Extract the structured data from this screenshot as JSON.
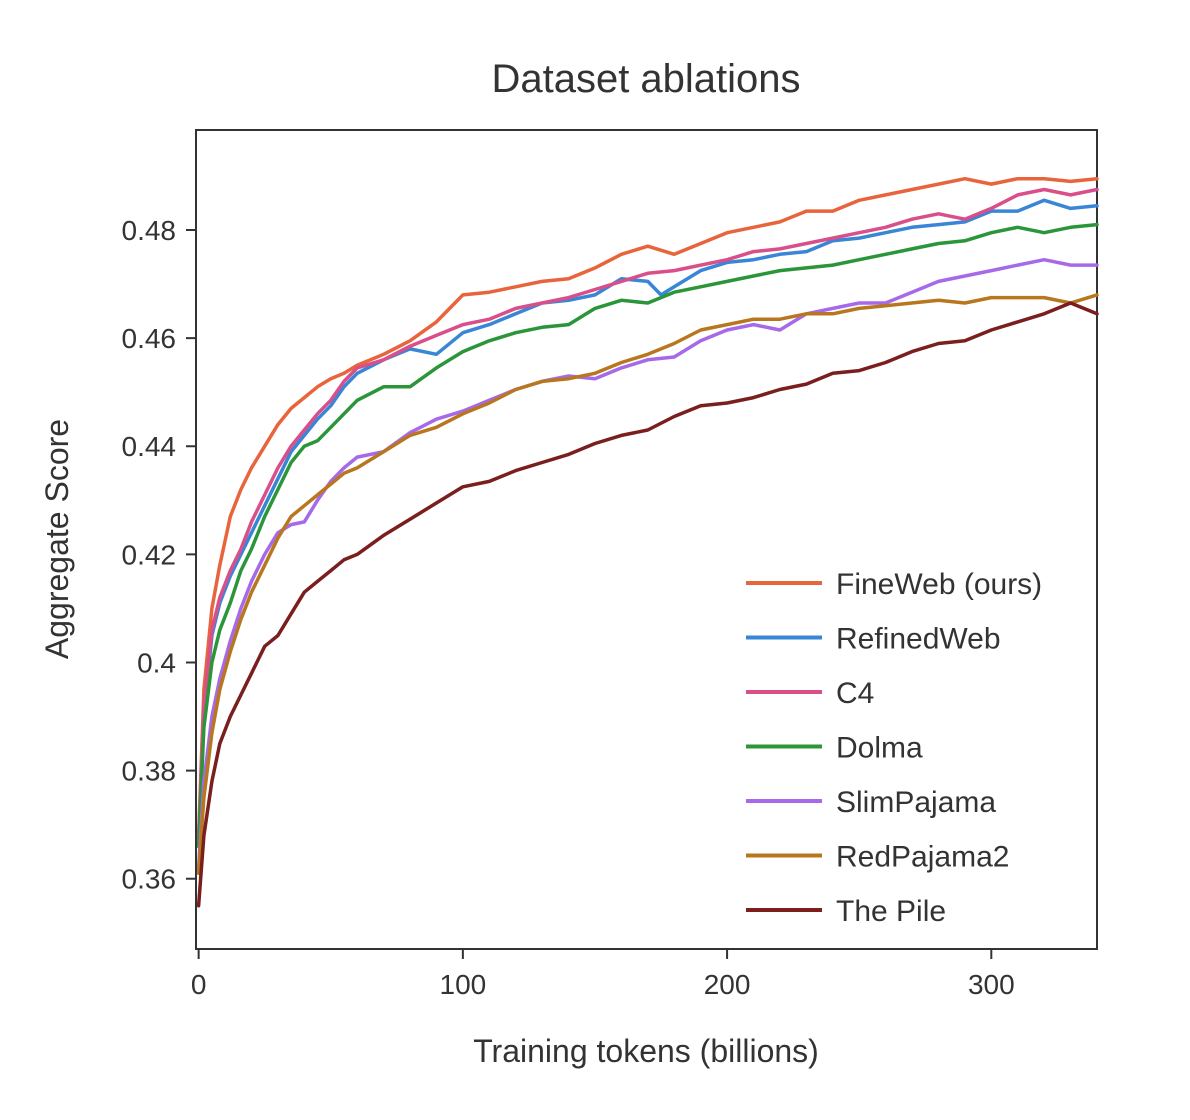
{
  "chart_data": {
    "type": "line",
    "title": "Dataset ablations",
    "xlabel": "Training tokens (billions)",
    "ylabel": "Aggregate Score",
    "xlim": [
      -1,
      340
    ],
    "ylim": [
      0.347,
      0.4985
    ],
    "x_ticks": [
      0,
      100,
      200,
      300
    ],
    "x_tick_labels": [
      "0",
      "100",
      "200",
      "300"
    ],
    "y_ticks": [
      0.36,
      0.38,
      0.4,
      0.42,
      0.44,
      0.46,
      0.48
    ],
    "y_tick_labels": [
      "0.36",
      "0.38",
      "0.4",
      "0.42",
      "0.44",
      "0.46",
      "0.48"
    ],
    "legend_position": "bottom-right",
    "series": [
      {
        "name": "FineWeb (ours)",
        "color": "#e8643c",
        "x": [
          0,
          2,
          5,
          8,
          12,
          16,
          20,
          25,
          30,
          35,
          40,
          45,
          50,
          55,
          60,
          70,
          80,
          90,
          100,
          110,
          120,
          130,
          140,
          150,
          160,
          170,
          180,
          190,
          200,
          210,
          220,
          230,
          240,
          250,
          260,
          270,
          280,
          290,
          300,
          310,
          320,
          330,
          340
        ],
        "y": [
          0.368,
          0.395,
          0.41,
          0.418,
          0.427,
          0.432,
          0.436,
          0.44,
          0.444,
          0.447,
          0.449,
          0.451,
          0.4525,
          0.4535,
          0.455,
          0.457,
          0.4595,
          0.463,
          0.468,
          0.4685,
          0.4695,
          0.4705,
          0.471,
          0.473,
          0.4755,
          0.477,
          0.4755,
          0.4775,
          0.4795,
          0.4805,
          0.4815,
          0.4835,
          0.4835,
          0.4855,
          0.4865,
          0.4875,
          0.4885,
          0.4895,
          0.4885,
          0.4895,
          0.4895,
          0.489,
          0.4895
        ]
      },
      {
        "name": "RefinedWeb",
        "color": "#3a86d6",
        "x": [
          0,
          2,
          5,
          8,
          12,
          16,
          20,
          25,
          30,
          35,
          40,
          45,
          50,
          55,
          60,
          70,
          80,
          90,
          100,
          110,
          120,
          130,
          140,
          150,
          160,
          170,
          175,
          180,
          190,
          200,
          210,
          220,
          230,
          240,
          250,
          260,
          270,
          280,
          290,
          300,
          310,
          320,
          330,
          340
        ],
        "y": [
          0.366,
          0.39,
          0.405,
          0.411,
          0.416,
          0.42,
          0.424,
          0.429,
          0.434,
          0.439,
          0.442,
          0.445,
          0.4475,
          0.451,
          0.4535,
          0.456,
          0.458,
          0.457,
          0.461,
          0.4625,
          0.4645,
          0.4665,
          0.467,
          0.468,
          0.471,
          0.4705,
          0.468,
          0.4695,
          0.4725,
          0.474,
          0.4745,
          0.4755,
          0.476,
          0.478,
          0.4785,
          0.4795,
          0.4805,
          0.481,
          0.4815,
          0.4835,
          0.4835,
          0.4855,
          0.484,
          0.4845
        ]
      },
      {
        "name": "C4",
        "color": "#d94f8a",
        "x": [
          0,
          2,
          5,
          8,
          12,
          16,
          20,
          25,
          30,
          35,
          40,
          45,
          50,
          55,
          60,
          70,
          80,
          90,
          100,
          110,
          120,
          130,
          140,
          150,
          160,
          170,
          180,
          190,
          200,
          210,
          220,
          230,
          240,
          250,
          260,
          270,
          280,
          290,
          300,
          310,
          320,
          330,
          340
        ],
        "y": [
          0.367,
          0.392,
          0.406,
          0.412,
          0.417,
          0.421,
          0.426,
          0.431,
          0.436,
          0.44,
          0.443,
          0.446,
          0.4485,
          0.452,
          0.4545,
          0.456,
          0.4585,
          0.4605,
          0.4625,
          0.4635,
          0.4655,
          0.4665,
          0.4675,
          0.469,
          0.4705,
          0.472,
          0.4725,
          0.4735,
          0.4745,
          0.476,
          0.4765,
          0.4775,
          0.4785,
          0.4795,
          0.4805,
          0.482,
          0.483,
          0.482,
          0.484,
          0.4865,
          0.4875,
          0.4865,
          0.4875
        ]
      },
      {
        "name": "Dolma",
        "color": "#2a9639",
        "x": [
          0,
          2,
          5,
          8,
          12,
          16,
          20,
          25,
          30,
          35,
          40,
          45,
          50,
          55,
          60,
          70,
          80,
          90,
          100,
          110,
          120,
          130,
          140,
          150,
          160,
          170,
          180,
          190,
          200,
          210,
          220,
          230,
          240,
          250,
          260,
          270,
          280,
          290,
          300,
          310,
          320,
          330,
          340
        ],
        "y": [
          0.366,
          0.388,
          0.4,
          0.406,
          0.411,
          0.417,
          0.421,
          0.427,
          0.432,
          0.437,
          0.44,
          0.441,
          0.4435,
          0.446,
          0.4485,
          0.451,
          0.451,
          0.4545,
          0.4575,
          0.4595,
          0.461,
          0.462,
          0.4625,
          0.4655,
          0.467,
          0.4665,
          0.4685,
          0.4695,
          0.4705,
          0.4715,
          0.4725,
          0.473,
          0.4735,
          0.4745,
          0.4755,
          0.4765,
          0.4775,
          0.478,
          0.4795,
          0.4805,
          0.4795,
          0.4805,
          0.481
        ]
      },
      {
        "name": "SlimPajama",
        "color": "#a66ae8",
        "x": [
          0,
          2,
          5,
          8,
          12,
          16,
          20,
          25,
          30,
          35,
          40,
          45,
          50,
          55,
          60,
          70,
          80,
          90,
          100,
          110,
          120,
          130,
          140,
          150,
          160,
          170,
          180,
          190,
          200,
          210,
          220,
          230,
          240,
          250,
          260,
          270,
          280,
          290,
          300,
          310,
          320,
          330,
          340
        ],
        "y": [
          0.362,
          0.378,
          0.39,
          0.397,
          0.404,
          0.41,
          0.415,
          0.42,
          0.424,
          0.4255,
          0.426,
          0.43,
          0.4335,
          0.436,
          0.438,
          0.439,
          0.4425,
          0.445,
          0.4465,
          0.4485,
          0.4505,
          0.452,
          0.453,
          0.4525,
          0.4545,
          0.456,
          0.4565,
          0.4595,
          0.4615,
          0.4625,
          0.4615,
          0.4645,
          0.4655,
          0.4665,
          0.4665,
          0.4685,
          0.4705,
          0.4715,
          0.4725,
          0.4735,
          0.4745,
          0.4735,
          0.4735
        ]
      },
      {
        "name": "RedPajama2",
        "color": "#b8771f",
        "x": [
          0,
          2,
          5,
          8,
          12,
          16,
          20,
          25,
          30,
          35,
          40,
          45,
          50,
          55,
          60,
          70,
          80,
          90,
          100,
          110,
          120,
          130,
          140,
          150,
          160,
          170,
          180,
          190,
          200,
          210,
          220,
          230,
          240,
          250,
          260,
          270,
          280,
          290,
          300,
          310,
          320,
          330,
          340
        ],
        "y": [
          0.361,
          0.375,
          0.387,
          0.395,
          0.402,
          0.408,
          0.413,
          0.418,
          0.423,
          0.427,
          0.429,
          0.431,
          0.433,
          0.435,
          0.436,
          0.439,
          0.442,
          0.4435,
          0.446,
          0.448,
          0.4505,
          0.452,
          0.4525,
          0.4535,
          0.4555,
          0.457,
          0.459,
          0.4615,
          0.4625,
          0.4635,
          0.4635,
          0.4645,
          0.4645,
          0.4655,
          0.466,
          0.4665,
          0.467,
          0.4665,
          0.4675,
          0.4675,
          0.4675,
          0.4665,
          0.468
        ]
      },
      {
        "name": "The Pile",
        "color": "#7a1e1e",
        "x": [
          0,
          2,
          5,
          8,
          12,
          16,
          20,
          25,
          30,
          35,
          40,
          45,
          50,
          55,
          60,
          70,
          80,
          90,
          100,
          110,
          120,
          130,
          140,
          150,
          160,
          170,
          180,
          190,
          200,
          210,
          220,
          230,
          240,
          250,
          260,
          270,
          280,
          290,
          300,
          310,
          320,
          330,
          340
        ],
        "y": [
          0.355,
          0.368,
          0.378,
          0.385,
          0.39,
          0.394,
          0.398,
          0.403,
          0.405,
          0.409,
          0.413,
          0.415,
          0.417,
          0.419,
          0.42,
          0.4235,
          0.4265,
          0.4295,
          0.4325,
          0.4335,
          0.4355,
          0.437,
          0.4385,
          0.4405,
          0.442,
          0.443,
          0.4455,
          0.4475,
          0.448,
          0.449,
          0.4505,
          0.4515,
          0.4535,
          0.454,
          0.4555,
          0.4575,
          0.459,
          0.4595,
          0.4615,
          0.463,
          0.4645,
          0.4665,
          0.4645
        ]
      }
    ]
  }
}
